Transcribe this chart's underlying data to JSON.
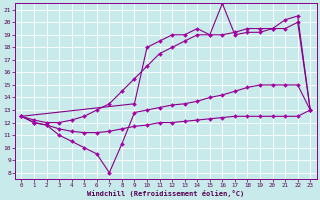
{
  "background_color": "#c8eaea",
  "grid_color": "#ffffff",
  "line_color": "#880088",
  "marker_color": "#aa00aa",
  "xlabel": "Windchill (Refroidissement éolien,°C)",
  "xlabel_color": "#550055",
  "xmin": 0,
  "xmax": 23,
  "ymin": 8,
  "ymax": 21,
  "yticks": [
    8,
    9,
    10,
    11,
    12,
    13,
    14,
    15,
    16,
    17,
    18,
    19,
    20,
    21
  ],
  "xticks": [
    0,
    1,
    2,
    3,
    4,
    5,
    6,
    7,
    8,
    9,
    10,
    11,
    12,
    13,
    14,
    15,
    16,
    17,
    18,
    19,
    20,
    21,
    22,
    23
  ],
  "line_jagged_x": [
    0,
    1,
    2,
    3,
    4,
    5,
    6,
    7,
    8,
    9,
    10,
    11,
    12,
    13,
    14,
    15,
    16,
    17,
    18,
    19,
    20,
    21,
    22,
    23
  ],
  "line_jagged_y": [
    12.5,
    12.0,
    11.8,
    11.0,
    10.5,
    10.0,
    9.5,
    8.0,
    10.3,
    12.8,
    13.0,
    13.2,
    13.4,
    13.5,
    13.7,
    14.0,
    14.2,
    14.5,
    14.8,
    15.0,
    15.0,
    15.0,
    15.0,
    13.0
  ],
  "line_lower_x": [
    0,
    1,
    2,
    3,
    4,
    5,
    6,
    7,
    8,
    9,
    10,
    11,
    12,
    13,
    14,
    15,
    16,
    17,
    18,
    19,
    20,
    21,
    22,
    23
  ],
  "line_lower_y": [
    12.5,
    12.0,
    11.8,
    11.5,
    11.3,
    11.2,
    11.2,
    11.3,
    11.5,
    11.7,
    11.8,
    12.0,
    12.0,
    12.1,
    12.2,
    12.3,
    12.4,
    12.5,
    12.5,
    12.5,
    12.5,
    12.5,
    12.5,
    13.0
  ],
  "line_upper_smooth_x": [
    0,
    1,
    2,
    3,
    4,
    5,
    6,
    7,
    8,
    9,
    10,
    11,
    12,
    13,
    14,
    15,
    16,
    17,
    18,
    19,
    20,
    21,
    22,
    23
  ],
  "line_upper_smooth_y": [
    12.5,
    12.2,
    12.0,
    12.0,
    12.2,
    12.5,
    13.0,
    13.5,
    14.5,
    15.5,
    16.5,
    17.5,
    18.0,
    18.5,
    19.0,
    19.0,
    19.0,
    19.2,
    19.5,
    19.5,
    19.5,
    19.5,
    20.0,
    13.0
  ],
  "line_upper_jagged_x": [
    0,
    9,
    10,
    11,
    12,
    13,
    14,
    15,
    16,
    17,
    18,
    19,
    20,
    21,
    22,
    23
  ],
  "line_upper_jagged_y": [
    12.5,
    13.5,
    18.0,
    18.5,
    19.0,
    19.0,
    19.5,
    19.0,
    21.5,
    19.0,
    19.2,
    19.2,
    19.5,
    20.2,
    20.5,
    13.0
  ]
}
